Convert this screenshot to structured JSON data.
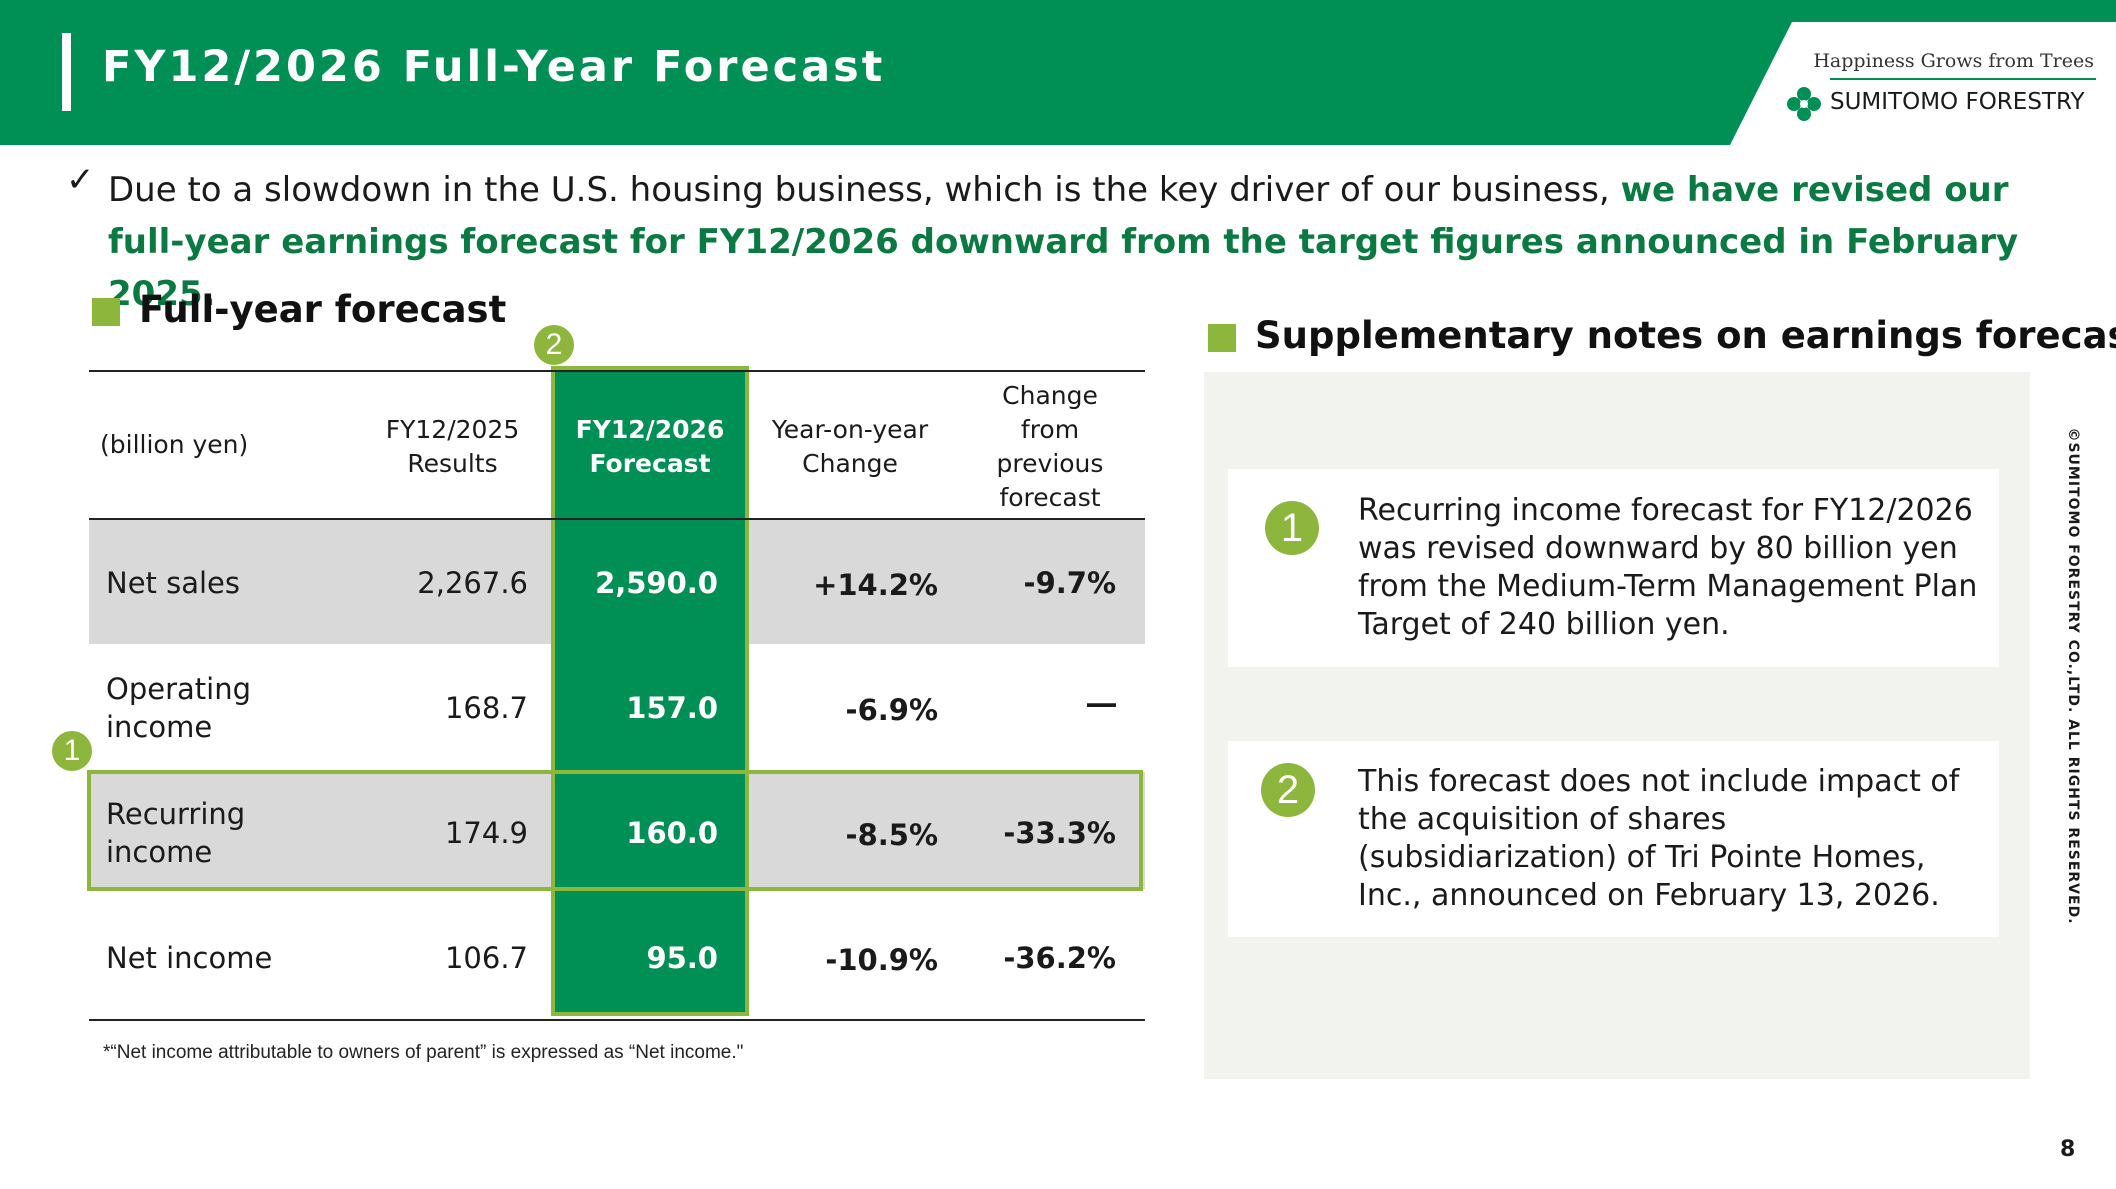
{
  "header": {
    "title": "FY12/2026 Full-Year Forecast",
    "logo_tagline": "Happiness Grows from Trees",
    "logo_name": "SUMITOMO FORESTRY",
    "accent_color": "#008f54"
  },
  "lead": {
    "plain": "Due to a slowdown in the U.S. housing business, which is the key driver of our business, ",
    "highlight": "we have revised our full-year earnings forecast for FY12/2026 downward from the target figures announced in February 2025."
  },
  "forecast": {
    "section_title": "Full-year forecast",
    "unit_label": "(billion yen)",
    "columns": [
      "FY12/2025 Results",
      "FY12/2026 Forecast",
      "Year-on-year Change",
      "Change from previous forecast"
    ],
    "rows": [
      {
        "label": "Net sales",
        "results": "2,267.6",
        "forecast": "2,590.0",
        "yoy": "+14.2%",
        "vs_prev": "-9.7%"
      },
      {
        "label": "Operating income",
        "results": "168.7",
        "forecast": "157.0",
        "yoy": "-6.9%",
        "vs_prev": "―"
      },
      {
        "label": "Recurring income",
        "results": "174.9",
        "forecast": "160.0",
        "yoy": "-8.5%",
        "vs_prev": "-33.3%"
      },
      {
        "label": "Net income",
        "results": "106.7",
        "forecast": "95.0",
        "yoy": "-10.9%",
        "vs_prev": "-36.2%"
      }
    ],
    "marker_1": "1",
    "marker_2": "2",
    "footnote": "*“Net income attributable to owners of parent” is expressed as “Net income.\""
  },
  "notes": {
    "section_title": "Supplementary notes on earnings forecast",
    "items": [
      {
        "marker": "1",
        "text": "Recurring income forecast for FY12/2026 was revised downward by 80 billion yen from the Medium-Term Management Plan Target of 240 billion yen."
      },
      {
        "marker": "2",
        "text": "This forecast does not include impact of the acquisition of shares (subsidiarization) of Tri Pointe Homes, Inc.,  announced on February 13, 2026."
      }
    ]
  },
  "footer": {
    "copyright": "©SUMITOMO FORESTRY CO.,LTD. ALL RIGHTS RESERVED.",
    "page_number": "8"
  }
}
